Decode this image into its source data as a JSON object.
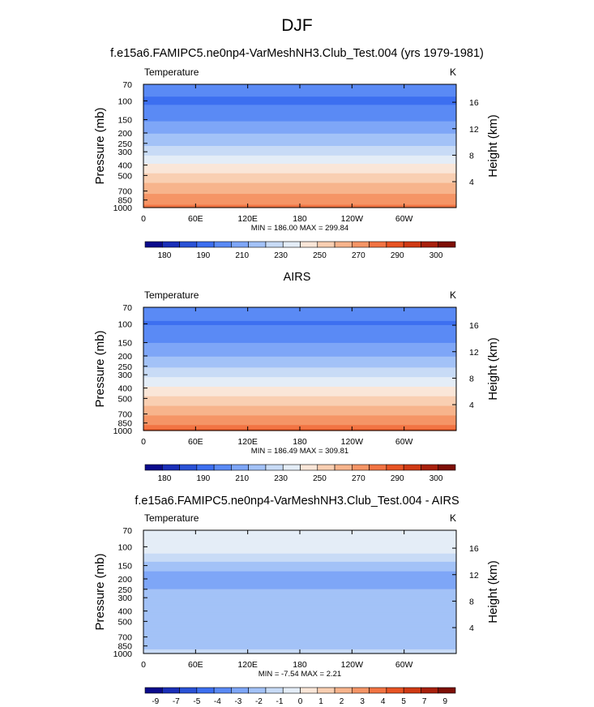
{
  "figure": {
    "title": "DJF"
  },
  "colors": {
    "temperature_scale": [
      "#0a0a8c",
      "#1a2fb8",
      "#2a52d6",
      "#3d6ff0",
      "#5a8af5",
      "#7ea6f7",
      "#a3c2f7",
      "#c8dbf6",
      "#e4edf7",
      "#fae6d8",
      "#f9cfb2",
      "#f7b48c",
      "#f59566",
      "#f27443",
      "#e85424",
      "#d03a14",
      "#a8200c",
      "#7e0f06"
    ],
    "difference_scale": [
      "#0a0a8c",
      "#1a2fb8",
      "#2a52d6",
      "#3d6ff0",
      "#5a8af5",
      "#7ea6f7",
      "#a3c2f7",
      "#c8dbf6",
      "#e4edf7",
      "#fae6d8",
      "#f9cfb2",
      "#f7b48c",
      "#f59566",
      "#f27443",
      "#e85424",
      "#d03a14",
      "#a8200c",
      "#7e0f06"
    ]
  },
  "panels": [
    {
      "title": "f.e15a6.FAMIPC5.ne0np4-VarMeshNH3.Club_Test.004 (yrs 1979-1981)",
      "left_label": "Temperature",
      "right_label": "K",
      "stats": "MIN = 186.00  MAX = 299.84",
      "colorbar_labels": [
        "180",
        "190",
        "210",
        "230",
        "250",
        "270",
        "290",
        "300"
      ]
    },
    {
      "title": "AIRS",
      "left_label": "Temperature",
      "right_label": "K",
      "stats": "MIN = 186.49  MAX = 309.81",
      "colorbar_labels": [
        "180",
        "190",
        "210",
        "230",
        "250",
        "270",
        "290",
        "300"
      ]
    },
    {
      "title": "f.e15a6.FAMIPC5.ne0np4-VarMeshNH3.Club_Test.004 - AIRS",
      "left_label": "Temperature",
      "right_label": "K",
      "stats": "MIN = -7.54  MAX =  2.21",
      "colorbar_labels": [
        "-9",
        "-7",
        "-5",
        "-4",
        "-3",
        "-2",
        "-1",
        "0",
        "1",
        "2",
        "3",
        "4",
        "5",
        "7",
        "9"
      ]
    }
  ],
  "chart_data": [
    {
      "type": "heatmap",
      "title": "f.e15a6.FAMIPC5.ne0np4-VarMeshNH3.Club_Test.004 (yrs 1979-1981)",
      "variable": "Temperature",
      "units": "K",
      "xlabel": "",
      "ylabel": "Pressure (mb)",
      "y2label": "Height (km)",
      "x_ticks": [
        "0",
        "60E",
        "120E",
        "180",
        "120W",
        "60W"
      ],
      "y_ticks": [
        "70",
        "100",
        "150",
        "200",
        "250",
        "300",
        "400",
        "500",
        "700",
        "850",
        "1000"
      ],
      "y2_ticks": [
        "16",
        "12",
        "8",
        "4"
      ],
      "min": 186.0,
      "max": 299.84,
      "levels": [
        180,
        185,
        190,
        200,
        210,
        220,
        230,
        240,
        250,
        260,
        270,
        280,
        290,
        295,
        300
      ],
      "profile": [
        {
          "p": 70,
          "v": 205
        },
        {
          "p": 100,
          "v": 198
        },
        {
          "p": 150,
          "v": 209
        },
        {
          "p": 200,
          "v": 219
        },
        {
          "p": 250,
          "v": 228
        },
        {
          "p": 300,
          "v": 236
        },
        {
          "p": 400,
          "v": 251
        },
        {
          "p": 500,
          "v": 262
        },
        {
          "p": 700,
          "v": 278
        },
        {
          "p": 850,
          "v": 286
        },
        {
          "p": 1000,
          "v": 293
        }
      ]
    },
    {
      "type": "heatmap",
      "title": "AIRS",
      "variable": "Temperature",
      "units": "K",
      "xlabel": "",
      "ylabel": "Pressure (mb)",
      "y2label": "Height (km)",
      "x_ticks": [
        "0",
        "60E",
        "120E",
        "180",
        "120W",
        "60W"
      ],
      "y_ticks": [
        "70",
        "100",
        "150",
        "200",
        "250",
        "300",
        "400",
        "500",
        "700",
        "850",
        "1000"
      ],
      "y2_ticks": [
        "16",
        "12",
        "8",
        "4"
      ],
      "min": 186.49,
      "max": 309.81,
      "levels": [
        180,
        185,
        190,
        200,
        210,
        220,
        230,
        240,
        250,
        260,
        270,
        280,
        290,
        295,
        300
      ],
      "profile": [
        {
          "p": 70,
          "v": 204
        },
        {
          "p": 100,
          "v": 199
        },
        {
          "p": 150,
          "v": 210
        },
        {
          "p": 200,
          "v": 220
        },
        {
          "p": 250,
          "v": 229
        },
        {
          "p": 300,
          "v": 237
        },
        {
          "p": 400,
          "v": 251
        },
        {
          "p": 500,
          "v": 263
        },
        {
          "p": 700,
          "v": 279
        },
        {
          "p": 850,
          "v": 288
        },
        {
          "p": 1000,
          "v": 297
        }
      ]
    },
    {
      "type": "heatmap",
      "title": "f.e15a6.FAMIPC5.ne0np4-VarMeshNH3.Club_Test.004 - AIRS",
      "variable": "Temperature",
      "units": "K",
      "xlabel": "",
      "ylabel": "Pressure (mb)",
      "y2label": "Height (km)",
      "x_ticks": [
        "0",
        "60E",
        "120E",
        "180",
        "120W",
        "60W"
      ],
      "y_ticks": [
        "70",
        "100",
        "150",
        "200",
        "250",
        "300",
        "400",
        "500",
        "700",
        "850",
        "1000"
      ],
      "y2_ticks": [
        "16",
        "12",
        "8",
        "4"
      ],
      "min": -7.54,
      "max": 2.21,
      "levels": [
        -9,
        -7,
        -5,
        -4,
        -3,
        -2,
        -1,
        0,
        1,
        2,
        3,
        4,
        5,
        7,
        9
      ],
      "profile": [
        {
          "p": 70,
          "v": 0.3
        },
        {
          "p": 100,
          "v": 0.8
        },
        {
          "p": 150,
          "v": -1.5
        },
        {
          "p": 200,
          "v": -2.6
        },
        {
          "p": 250,
          "v": -2.0
        },
        {
          "p": 300,
          "v": -1.5
        },
        {
          "p": 400,
          "v": -1.5
        },
        {
          "p": 500,
          "v": -1.2
        },
        {
          "p": 700,
          "v": -1.6
        },
        {
          "p": 850,
          "v": -1.5
        },
        {
          "p": 1000,
          "v": -0.3
        }
      ]
    }
  ]
}
